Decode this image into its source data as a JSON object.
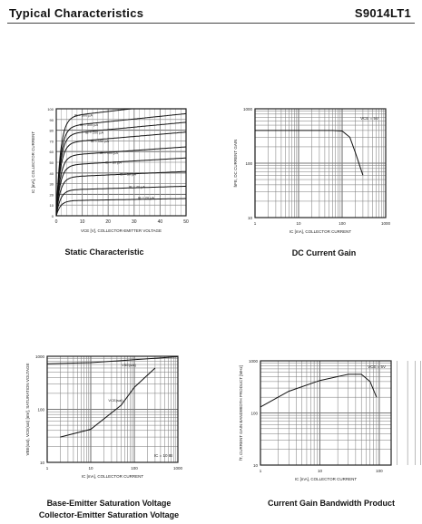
{
  "header": {
    "title": "Typical Characteristics",
    "part_number": "S9014LT1"
  },
  "captions": {
    "static": "Static  Characteristic",
    "dc_gain": "DC  Current Gain",
    "saturation_line1": "Base-Emitter Saturation Voltage",
    "saturation_line2": "Collector-Emitter Saturation Voltage",
    "bandwidth": "Current Gain Bandwidth Product"
  },
  "chart_data": [
    {
      "id": "static",
      "type": "line",
      "title": "",
      "xlabel": "VCE [V], COLLECTOR-EMITTER VOLTAGE",
      "ylabel": "IC [mA], COLLECTOR CURRENT",
      "xlim": [
        0,
        50
      ],
      "ylim": [
        0,
        100
      ],
      "x_ticks": [
        "0",
        "10",
        "20",
        "30",
        "40",
        "50"
      ],
      "y_ticks": [
        "0",
        "10",
        "20",
        "30",
        "40",
        "50",
        "60",
        "70",
        "80",
        "90",
        "100"
      ],
      "grid": true,
      "series": [
        {
          "name": "IB = 500 µA",
          "saturation": 92
        },
        {
          "name": "IB = 300 µA",
          "saturation": 83
        },
        {
          "name": "IB = 200 µA",
          "saturation": 76
        },
        {
          "name": "IB = 150 µA",
          "saturation": 68
        },
        {
          "name": "IB = 100 µA",
          "saturation": 56
        },
        {
          "name": "IB = 80 µA",
          "saturation": 47
        },
        {
          "name": "IB = 50 µA",
          "saturation": 36
        },
        {
          "name": "IB = 40 µA",
          "saturation": 24
        },
        {
          "name": "IB = 20 µA",
          "saturation": 14
        }
      ]
    },
    {
      "id": "dcgain",
      "type": "line",
      "title": "",
      "xlabel": "IC [mA], COLLECTOR CURRENT",
      "ylabel": "hFE, DC CURRENT GAIN",
      "x_ticks": [
        "1",
        "10",
        "100",
        "1000"
      ],
      "y_ticks": [
        "10",
        "100",
        "1000"
      ],
      "annotation": "VCE = 5V",
      "grid": true,
      "series": [
        {
          "name": "",
          "x": [
            1,
            10,
            60,
            100,
            150,
            200,
            300
          ],
          "y": [
            400,
            400,
            400,
            390,
            300,
            160,
            60
          ]
        }
      ]
    },
    {
      "id": "saturation",
      "type": "line",
      "title": "",
      "xlabel": "IC [mA], COLLECTOR CURRENT",
      "ylabel": "VBE(sat), VCE(sat) [mV], SATURATION VOLTAGE",
      "x_ticks": [
        "1",
        "10",
        "100",
        "1000"
      ],
      "y_ticks": [
        "10",
        "100",
        "1000"
      ],
      "annotation": "IC = 10 IB",
      "grid": true,
      "series": [
        {
          "name": "VBE(sat)",
          "x": [
            1,
            10,
            100,
            1000
          ],
          "y": [
            720,
            760,
            860,
            980
          ]
        },
        {
          "name": "VCE(sat)",
          "x": [
            2,
            10,
            50,
            100,
            300
          ],
          "y": [
            30,
            42,
            120,
            260,
            600
          ]
        }
      ]
    },
    {
      "id": "bandwidth",
      "type": "line",
      "title": "",
      "xlabel": "IC [mA], COLLECTOR CURRENT",
      "ylabel": "fT, CURRENT GAIN BANDWIDTH PRODUCT [MHz]",
      "x_ticks": [
        "1",
        "10",
        "100"
      ],
      "y_ticks": [
        "10",
        "100",
        "1000"
      ],
      "annotation": "VCE = 5V",
      "grid": true,
      "series": [
        {
          "name": "",
          "x": [
            1,
            3,
            10,
            30,
            50,
            70,
            90
          ],
          "y": [
            130,
            260,
            420,
            550,
            550,
            400,
            200
          ]
        }
      ]
    }
  ]
}
